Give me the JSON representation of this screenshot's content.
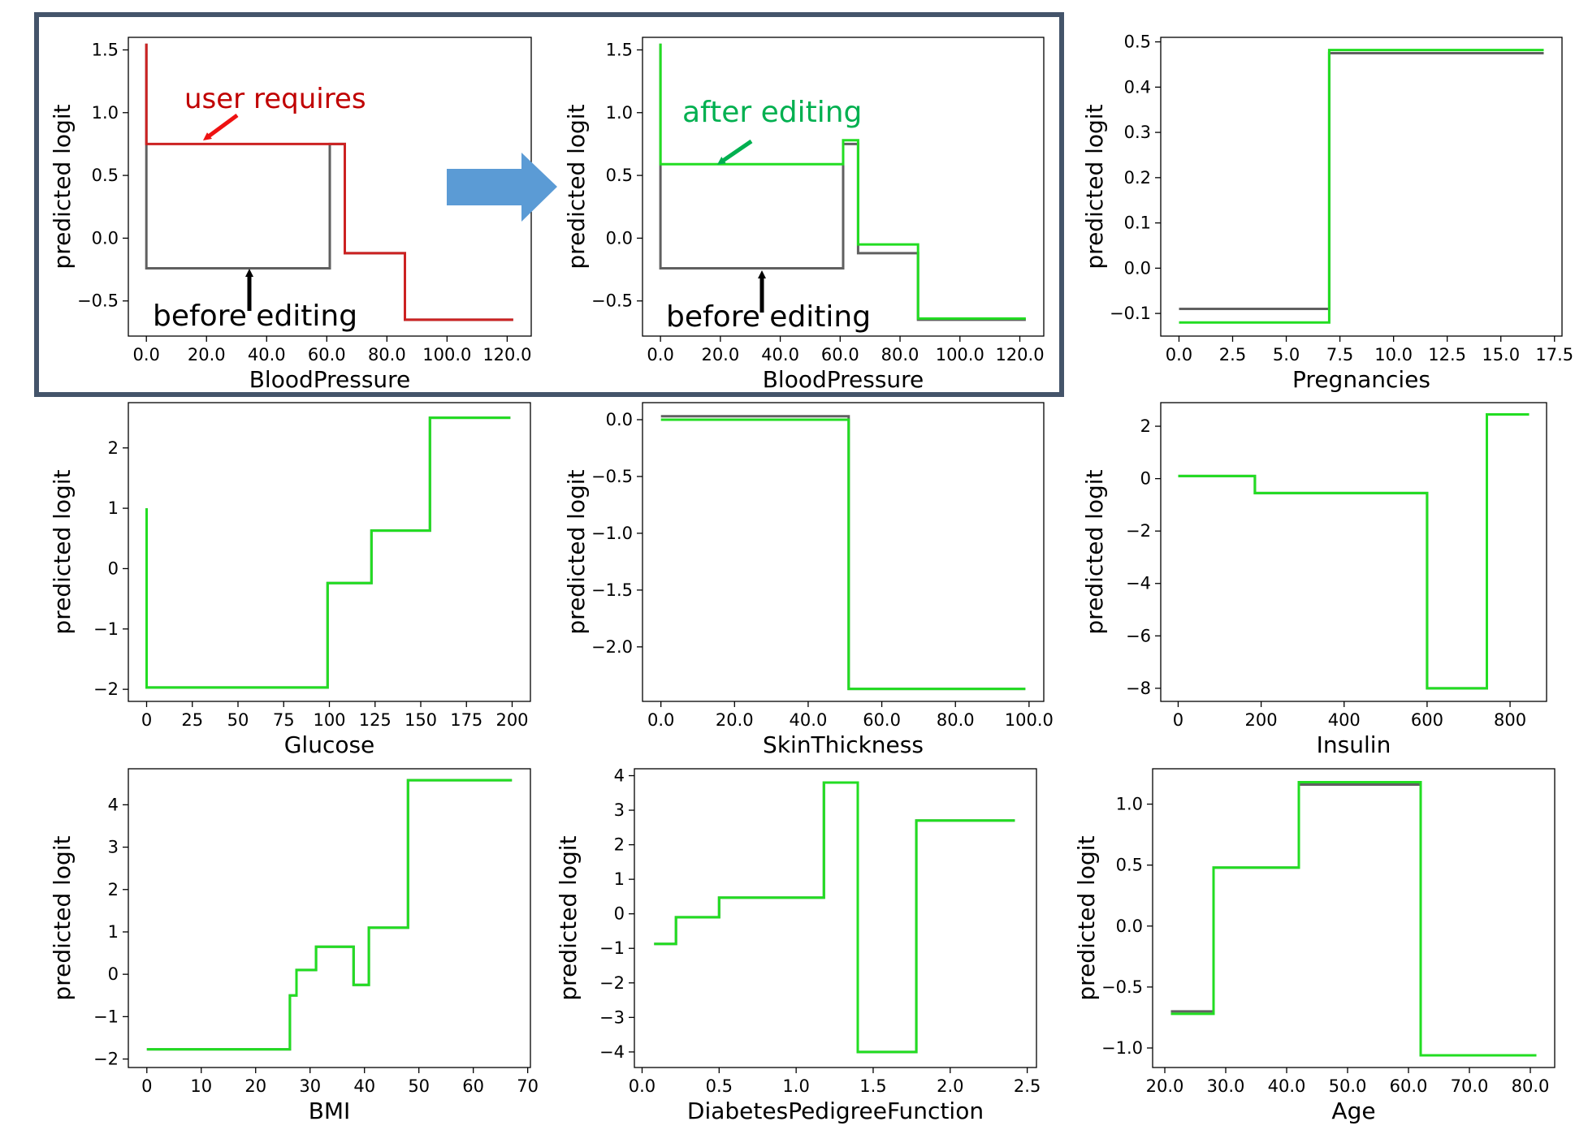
{
  "colors": {
    "before": "#606060",
    "after": "#22dd22",
    "user": "#cc2222",
    "user_label": "#c00000",
    "after_label": "#00b050",
    "frame": "#44546a",
    "big_arrow": "#5b9bd5",
    "annotation_black": "#000000"
  },
  "annotations": {
    "user_requires": "user requires",
    "after_editing": "after editing",
    "before_editing_1": "before editing",
    "before_editing_2": "before editing"
  },
  "chart_data": [
    {
      "id": "bp_user",
      "type": "line",
      "xlabel": "BloodPressure",
      "ylabel": "predicted logit",
      "xlim": [
        -6,
        128
      ],
      "ylim": [
        -0.78,
        1.6
      ],
      "xticks": [
        0,
        20,
        40,
        60,
        80,
        100,
        120
      ],
      "yticks": [
        -0.5,
        0.0,
        0.5,
        1.0,
        1.5
      ],
      "tick_decimals": 1,
      "series": [
        {
          "name": "before",
          "color_key": "before",
          "x": [
            0,
            0,
            61,
            61,
            66,
            66,
            86,
            86,
            122
          ],
          "y": [
            1.55,
            -0.24,
            -0.24,
            0.75,
            0.75,
            -0.12,
            -0.12,
            -0.65,
            -0.65
          ]
        },
        {
          "name": "user requires",
          "color_key": "user",
          "x": [
            0,
            0,
            66,
            66,
            86,
            86,
            122
          ],
          "y": [
            1.55,
            0.75,
            0.75,
            -0.12,
            -0.12,
            -0.65,
            -0.65
          ]
        }
      ]
    },
    {
      "id": "bp_after",
      "type": "line",
      "xlabel": "BloodPressure",
      "ylabel": "predicted logit",
      "xlim": [
        -6,
        128
      ],
      "ylim": [
        -0.78,
        1.6
      ],
      "xticks": [
        0,
        20,
        40,
        60,
        80,
        100,
        120
      ],
      "yticks": [
        -0.5,
        0.0,
        0.5,
        1.0,
        1.5
      ],
      "tick_decimals": 1,
      "series": [
        {
          "name": "before",
          "color_key": "before",
          "x": [
            0,
            0,
            61,
            61,
            66,
            66,
            86,
            86,
            122
          ],
          "y": [
            1.55,
            -0.24,
            -0.24,
            0.75,
            0.75,
            -0.12,
            -0.12,
            -0.65,
            -0.65
          ]
        },
        {
          "name": "after",
          "color_key": "after",
          "x": [
            0,
            0,
            61,
            61,
            66,
            66,
            86,
            86,
            122
          ],
          "y": [
            1.55,
            0.59,
            0.59,
            0.78,
            0.78,
            -0.05,
            -0.05,
            -0.64,
            -0.64
          ]
        }
      ]
    },
    {
      "id": "pregnancies",
      "type": "line",
      "xlabel": "Pregnancies",
      "ylabel": "predicted logit",
      "xlim": [
        -0.85,
        17.85
      ],
      "ylim": [
        -0.15,
        0.51
      ],
      "xticks": [
        0.0,
        2.5,
        5.0,
        7.5,
        10.0,
        12.5,
        15.0,
        17.5
      ],
      "yticks": [
        -0.1,
        0.0,
        0.1,
        0.2,
        0.3,
        0.4,
        0.5
      ],
      "tick_decimals": 1,
      "series": [
        {
          "name": "before",
          "color_key": "before",
          "x": [
            0,
            7,
            7,
            17
          ],
          "y": [
            -0.09,
            -0.09,
            0.475,
            0.475
          ]
        },
        {
          "name": "after",
          "color_key": "after",
          "x": [
            0,
            7,
            7,
            17
          ],
          "y": [
            -0.12,
            -0.12,
            0.482,
            0.482
          ]
        }
      ]
    },
    {
      "id": "glucose",
      "type": "line",
      "xlabel": "Glucose",
      "ylabel": "predicted logit",
      "xlim": [
        -10,
        210
      ],
      "ylim": [
        -2.2,
        2.75
      ],
      "xticks": [
        0,
        25,
        50,
        75,
        100,
        125,
        150,
        175,
        200
      ],
      "yticks": [
        -2,
        -1,
        0,
        1,
        2
      ],
      "tick_decimals": 0,
      "series": [
        {
          "name": "before",
          "color_key": "before",
          "x": [
            0,
            0,
            99,
            99,
            123,
            123,
            155,
            155,
            199
          ],
          "y": [
            1.0,
            -1.97,
            -1.97,
            -0.24,
            -0.24,
            0.63,
            0.63,
            2.5,
            2.5
          ]
        },
        {
          "name": "after",
          "color_key": "after",
          "x": [
            0,
            0,
            99,
            99,
            123,
            123,
            155,
            155,
            199
          ],
          "y": [
            1.0,
            -1.97,
            -1.97,
            -0.24,
            -0.24,
            0.63,
            0.63,
            2.5,
            2.5
          ]
        }
      ]
    },
    {
      "id": "skin",
      "type": "line",
      "xlabel": "SkinThickness",
      "ylabel": "predicted logit",
      "xlim": [
        -5,
        104
      ],
      "ylim": [
        -2.48,
        0.15
      ],
      "xticks": [
        0,
        20,
        40,
        60,
        80,
        100
      ],
      "yticks": [
        -2.0,
        -1.5,
        -1.0,
        -0.5,
        0.0
      ],
      "tick_decimals": 1,
      "series": [
        {
          "name": "before",
          "color_key": "before",
          "x": [
            0,
            51,
            51,
            99
          ],
          "y": [
            0.03,
            0.03,
            -2.37,
            -2.37
          ]
        },
        {
          "name": "after",
          "color_key": "after",
          "x": [
            0,
            51,
            51,
            99
          ],
          "y": [
            0.0,
            0.0,
            -2.37,
            -2.37
          ]
        }
      ]
    },
    {
      "id": "insulin",
      "type": "line",
      "xlabel": "Insulin",
      "ylabel": "predicted logit",
      "xlim": [
        -42,
        888
      ],
      "ylim": [
        -8.5,
        2.9
      ],
      "xticks": [
        0,
        200,
        400,
        600,
        800
      ],
      "yticks": [
        -8,
        -6,
        -4,
        -2,
        0,
        2
      ],
      "tick_decimals": 0,
      "series": [
        {
          "name": "before",
          "color_key": "before",
          "x": [
            0,
            185,
            185,
            600,
            600,
            744,
            744,
            846
          ],
          "y": [
            0.1,
            0.1,
            -0.55,
            -0.55,
            -8.0,
            -8.0,
            2.45,
            2.45
          ]
        },
        {
          "name": "after",
          "color_key": "after",
          "x": [
            0,
            185,
            185,
            600,
            600,
            744,
            744,
            846
          ],
          "y": [
            0.1,
            0.1,
            -0.55,
            -0.55,
            -8.0,
            -8.0,
            2.45,
            2.45
          ]
        }
      ]
    },
    {
      "id": "bmi",
      "type": "line",
      "xlabel": "BMI",
      "ylabel": "predicted logit",
      "xlim": [
        -3.4,
        70.5
      ],
      "ylim": [
        -2.2,
        4.85
      ],
      "xticks": [
        0,
        10,
        20,
        30,
        40,
        50,
        60,
        70
      ],
      "yticks": [
        -2,
        -1,
        0,
        1,
        2,
        3,
        4
      ],
      "tick_decimals": 0,
      "series": [
        {
          "name": "before",
          "color_key": "before",
          "x": [
            0,
            26.3,
            26.3,
            27.5,
            27.5,
            31.1,
            31.1,
            38.0,
            38.0,
            40.8,
            40.8,
            48.0,
            48.0,
            67.1
          ],
          "y": [
            -1.77,
            -1.77,
            -0.5,
            -0.5,
            0.1,
            0.1,
            0.65,
            0.65,
            -0.25,
            -0.25,
            1.1,
            1.1,
            4.58,
            4.58
          ]
        },
        {
          "name": "after",
          "color_key": "after",
          "x": [
            0,
            26.3,
            26.3,
            27.5,
            27.5,
            31.1,
            31.1,
            38.0,
            38.0,
            40.8,
            40.8,
            48.0,
            48.0,
            67.1
          ],
          "y": [
            -1.77,
            -1.77,
            -0.5,
            -0.5,
            0.1,
            0.1,
            0.65,
            0.65,
            -0.25,
            -0.25,
            1.1,
            1.1,
            4.58,
            4.58
          ]
        }
      ]
    },
    {
      "id": "dpf",
      "type": "line",
      "xlabel": "DiabetesPedigreeFunction",
      "ylabel": "predicted logit",
      "xlim": [
        -0.05,
        2.56
      ],
      "ylim": [
        -4.45,
        4.2
      ],
      "xticks": [
        0.0,
        0.5,
        1.0,
        1.5,
        2.0,
        2.5
      ],
      "yticks": [
        -4,
        -3,
        -2,
        -1,
        0,
        1,
        2,
        3,
        4
      ],
      "tick_decimals": 1,
      "ytick_decimals": 0,
      "series": [
        {
          "name": "before",
          "color_key": "before",
          "x": [
            0.078,
            0.22,
            0.22,
            0.5,
            0.5,
            1.18,
            1.18,
            1.4,
            1.4,
            1.78,
            1.78,
            2.42
          ],
          "y": [
            -0.87,
            -0.87,
            -0.1,
            -0.1,
            0.47,
            0.47,
            3.8,
            3.8,
            -4.0,
            -4.0,
            2.7,
            2.7
          ]
        },
        {
          "name": "after",
          "color_key": "after",
          "x": [
            0.078,
            0.22,
            0.22,
            0.5,
            0.5,
            1.18,
            1.18,
            1.4,
            1.4,
            1.78,
            1.78,
            2.42
          ],
          "y": [
            -0.87,
            -0.87,
            -0.1,
            -0.1,
            0.47,
            0.47,
            3.8,
            3.8,
            -4.0,
            -4.0,
            2.7,
            2.7
          ]
        }
      ]
    },
    {
      "id": "age",
      "type": "line",
      "xlabel": "Age",
      "ylabel": "predicted logit",
      "xlim": [
        18,
        84
      ],
      "ylim": [
        -1.16,
        1.29
      ],
      "xticks": [
        20,
        30,
        40,
        50,
        60,
        70,
        80
      ],
      "yticks": [
        -1.0,
        -0.5,
        0.0,
        0.5,
        1.0
      ],
      "tick_decimals": 1,
      "series": [
        {
          "name": "before",
          "color_key": "before",
          "x": [
            21,
            28,
            28,
            42,
            42,
            62,
            62,
            81
          ],
          "y": [
            -0.7,
            -0.7,
            0.48,
            0.48,
            1.16,
            1.16,
            -1.06,
            -1.06
          ]
        },
        {
          "name": "after",
          "color_key": "after",
          "x": [
            21,
            28,
            28,
            42,
            42,
            62,
            62,
            81
          ],
          "y": [
            -0.72,
            -0.72,
            0.48,
            0.48,
            1.18,
            1.18,
            -1.06,
            -1.06
          ]
        }
      ]
    }
  ]
}
